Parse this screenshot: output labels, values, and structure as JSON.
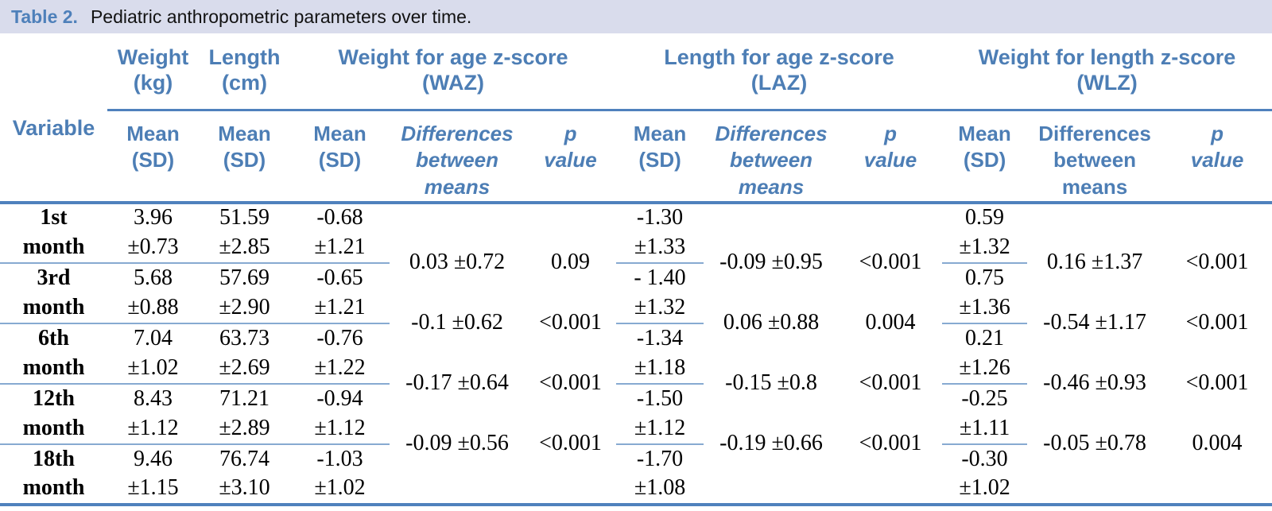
{
  "title": {
    "label": "Table 2.",
    "text": "Pediatric anthropometric parameters over time."
  },
  "header": {
    "variable": "Variable",
    "groups": [
      {
        "title": "Weight",
        "abbr": "(kg)"
      },
      {
        "title": "Length",
        "abbr": "(cm)"
      },
      {
        "title": "Weight for age z-score",
        "abbr": "(WAZ)"
      },
      {
        "title": "Length for age z-score",
        "abbr": "(LAZ)"
      },
      {
        "title": "Weight for length z-score",
        "abbr": "(WLZ)"
      }
    ],
    "subheaders": [
      "Mean (SD)",
      "Mean (SD)",
      "Mean (SD)",
      "Differences between means",
      "p value",
      "Mean (SD)",
      "Differences between means",
      "p value",
      "Mean (SD)",
      "Differences between means",
      "p value"
    ]
  },
  "body": {
    "months": [
      {
        "label": [
          "1st",
          "month"
        ],
        "weight": [
          "3.96",
          "±0.73"
        ],
        "length": [
          "51.59",
          "±2.85"
        ],
        "waz": [
          "-0.68",
          "±1.21"
        ],
        "laz": [
          "-1.30",
          "±1.33"
        ],
        "wlz": [
          "0.59",
          "±1.32"
        ]
      },
      {
        "label": [
          "3rd",
          "month"
        ],
        "weight": [
          "5.68",
          "±0.88"
        ],
        "length": [
          "57.69",
          "±2.90"
        ],
        "waz": [
          "-0.65",
          "±1.21"
        ],
        "laz": [
          "- 1.40",
          "±1.32"
        ],
        "wlz": [
          "0.75",
          "±1.36"
        ]
      },
      {
        "label": [
          "6th",
          "month"
        ],
        "weight": [
          "7.04",
          "±1.02"
        ],
        "length": [
          "63.73",
          "±2.69"
        ],
        "waz": [
          "-0.76",
          "±1.22"
        ],
        "laz": [
          "-1.34",
          "±1.18"
        ],
        "wlz": [
          "0.21",
          "±1.26"
        ]
      },
      {
        "label": [
          "12th",
          "month"
        ],
        "weight": [
          "8.43",
          "±1.12"
        ],
        "length": [
          "71.21",
          "±2.89"
        ],
        "waz": [
          "-0.94",
          "±1.12"
        ],
        "laz": [
          "-1.50",
          "±1.12"
        ],
        "wlz": [
          "-0.25",
          "±1.11"
        ]
      },
      {
        "label": [
          "18th",
          "month"
        ],
        "weight": [
          "9.46",
          "±1.15"
        ],
        "length": [
          "76.74",
          "±3.10"
        ],
        "waz": [
          "-1.03",
          "±1.02"
        ],
        "laz": [
          "-1.70",
          "±1.08"
        ],
        "wlz": [
          "-0.30",
          "±1.02"
        ]
      }
    ],
    "comparisons": [
      {
        "waz_diff": "0.03 ±0.72",
        "waz_p": "0.09",
        "laz_diff": "-0.09 ±0.95",
        "laz_p": "<0.001",
        "wlz_diff": "0.16 ±1.37",
        "wlz_p": "<0.001"
      },
      {
        "waz_diff": "-0.1 ±0.62",
        "waz_p": "<0.001",
        "laz_diff": "0.06 ±0.88",
        "laz_p": "0.004",
        "wlz_diff": "-0.54 ±1.17",
        "wlz_p": "<0.001"
      },
      {
        "waz_diff": "-0.17 ±0.64",
        "waz_p": "<0.001",
        "laz_diff": "-0.15 ±0.8",
        "laz_p": "<0.001",
        "wlz_diff": "-0.46 ±0.93",
        "wlz_p": "<0.001"
      },
      {
        "waz_diff": "-0.09 ±0.56",
        "waz_p": "<0.001",
        "laz_diff": "-0.19 ±0.66",
        "laz_p": "<0.001",
        "wlz_diff": "-0.05 ±0.78",
        "wlz_p": "0.004"
      }
    ]
  },
  "colors": {
    "title_bar_bg": "#d9dcec",
    "header_text_blue": "#4d7eb5",
    "rule_thick": "#4f81bd",
    "rule_thin": "#87aad1",
    "body_text": "#000000"
  }
}
